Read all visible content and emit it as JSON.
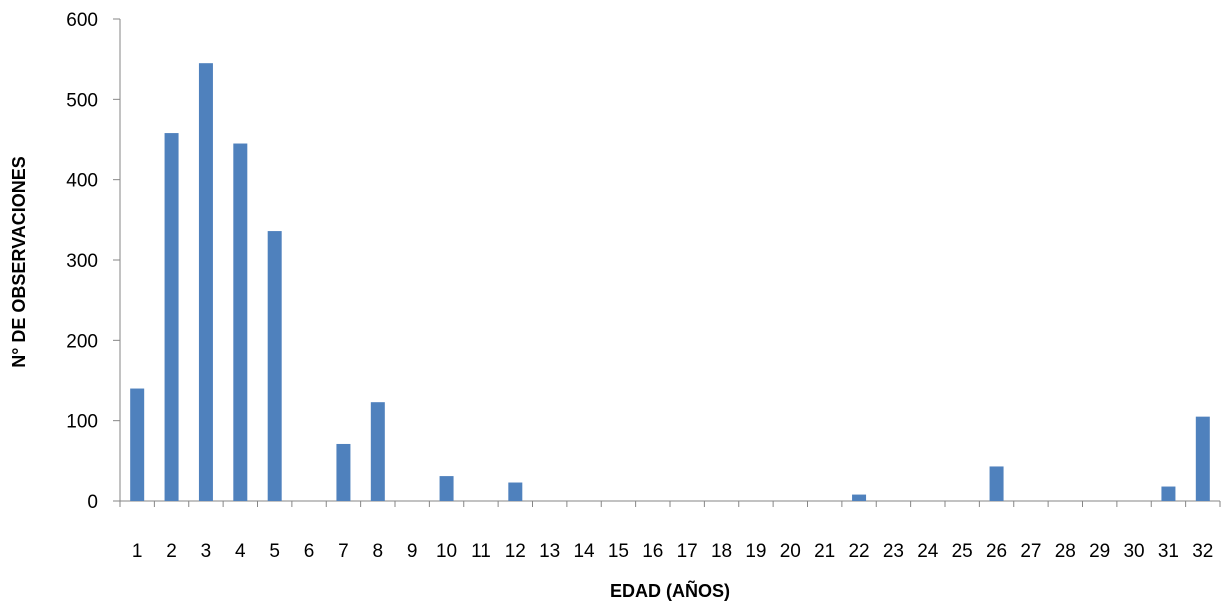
{
  "chart_data": {
    "type": "bar",
    "title": "",
    "xlabel": "EDAD (AÑOS)",
    "ylabel": "N° DE OBSERVACIONES",
    "ylim": [
      0,
      600
    ],
    "yticks": [
      "0",
      "100",
      "200",
      "300",
      "400",
      "500",
      "600"
    ],
    "categories": [
      "1",
      "2",
      "3",
      "4",
      "5",
      "6",
      "7",
      "8",
      "9",
      "10",
      "11",
      "12",
      "13",
      "14",
      "15",
      "16",
      "17",
      "18",
      "19",
      "20",
      "21",
      "22",
      "23",
      "24",
      "25",
      "26",
      "27",
      "28",
      "29",
      "30",
      "31",
      "32"
    ],
    "values": [
      140,
      458,
      545,
      445,
      336,
      0,
      71,
      123,
      0,
      31,
      0,
      23,
      0,
      0,
      0,
      0,
      0,
      0,
      0,
      0,
      0,
      8,
      0,
      0,
      0,
      43,
      0,
      0,
      0,
      0,
      18,
      105
    ],
    "bar_color": "#4F81BD",
    "grid": false,
    "legend": "none"
  }
}
